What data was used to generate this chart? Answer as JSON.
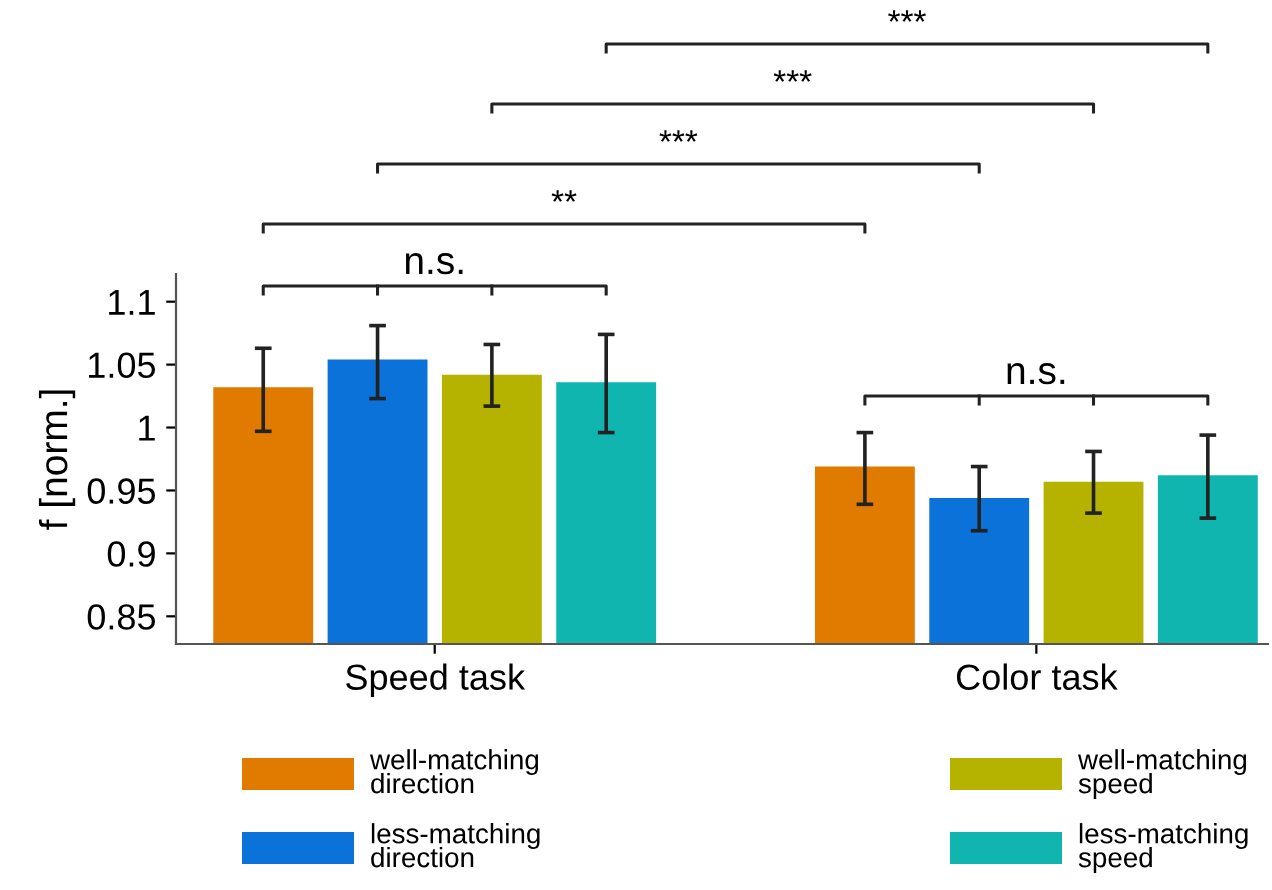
{
  "chart_data": {
    "type": "bar",
    "ylabel": "f [norm.]",
    "categories": [
      "Speed task",
      "Color task"
    ],
    "series": [
      {
        "name": "well-matching\ndirection",
        "color": "#e07b00",
        "values": [
          1.032,
          0.969
        ],
        "errors": [
          [
            0.997,
            1.063
          ],
          [
            0.939,
            0.996
          ]
        ]
      },
      {
        "name": "less-matching\ndirection",
        "color": "#0a72d8",
        "values": [
          1.054,
          0.944
        ],
        "errors": [
          [
            1.023,
            1.081
          ],
          [
            0.918,
            0.969
          ]
        ]
      },
      {
        "name": "well-matching\nspeed",
        "color": "#b5b300",
        "values": [
          1.042,
          0.957
        ],
        "errors": [
          [
            1.017,
            1.066
          ],
          [
            0.932,
            0.981
          ]
        ]
      },
      {
        "name": "less-matching\nspeed",
        "color": "#10b5b0",
        "values": [
          1.036,
          0.962
        ],
        "errors": [
          [
            0.996,
            1.074
          ],
          [
            0.928,
            0.994
          ]
        ]
      }
    ],
    "ylim": [
      0.828,
      1.122
    ],
    "yticks": [
      0.85,
      0.9,
      0.95,
      1,
      1.05,
      1.1
    ],
    "grid": false,
    "legend": "bottom",
    "annotations": [
      "n.s.",
      "n.s.",
      "**",
      "***",
      "***",
      "***"
    ]
  }
}
